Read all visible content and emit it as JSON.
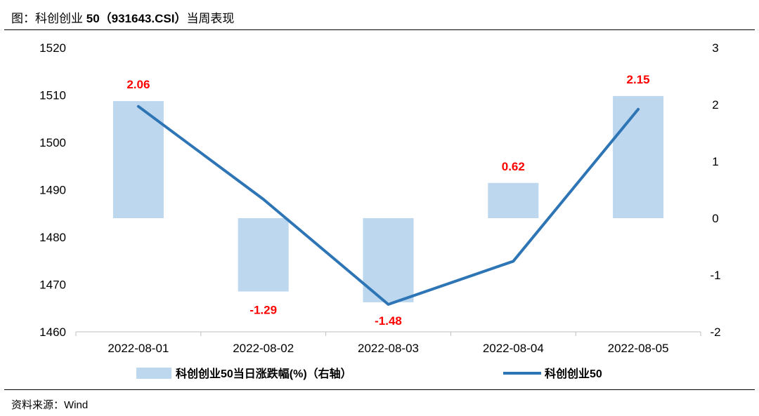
{
  "header": {
    "title_prefix": "图：科创创业 ",
    "title_bold": "50（931643.CSI）",
    "title_suffix": "当周表现"
  },
  "footer": {
    "source": "资料来源：Wind"
  },
  "chart_data": {
    "type": "bar+line",
    "categories": [
      "2022-08-01",
      "2022-08-02",
      "2022-08-03",
      "2022-08-04",
      "2022-08-05"
    ],
    "series": [
      {
        "name": "科创创业50当日涨跌幅(%)（右轴）",
        "type": "bar",
        "axis": "right",
        "values": [
          2.06,
          -1.29,
          -1.48,
          0.62,
          2.15
        ],
        "color": "#bdd7ee"
      },
      {
        "name": "科创创业50",
        "type": "line",
        "axis": "left",
        "values": [
          1507.6,
          1488.0,
          1465.8,
          1474.9,
          1507.0
        ],
        "color": "#2e75b6"
      }
    ],
    "data_labels": [
      "2.06",
      "-1.29",
      "-1.48",
      "0.62",
      "2.15"
    ],
    "y_left": {
      "min": 1460,
      "max": 1520,
      "ticks": [
        "1460",
        "1470",
        "1480",
        "1490",
        "1500",
        "1510",
        "1520"
      ]
    },
    "y_right": {
      "min": -2,
      "max": 3,
      "ticks": [
        "-2",
        "-1",
        "0",
        "1",
        "2",
        "3"
      ]
    },
    "grid": false,
    "legend_position": "bottom",
    "label_color": "#ff0000"
  }
}
